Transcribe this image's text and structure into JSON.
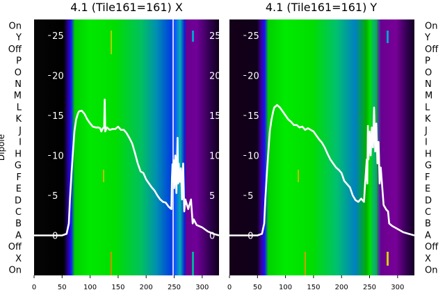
{
  "chart_data": [
    {
      "type": "heatmap",
      "title": "4.1 (Tile161=161) X",
      "ylabel": "Dipole",
      "xlim": [
        0,
        330
      ],
      "xticks": [
        0,
        50,
        100,
        150,
        200,
        250,
        300
      ],
      "dipole_labels": [
        "On",
        "Y",
        "Off",
        "P",
        "O",
        "N",
        "M",
        "L",
        "K",
        "J",
        "I",
        "H",
        "G",
        "F",
        "E",
        "D",
        "C",
        "B",
        "A",
        "Off",
        "X",
        "On"
      ],
      "overlay_ylim": [
        -5,
        27
      ],
      "overlay_yticks": [
        0,
        5,
        10,
        15,
        20,
        25
      ],
      "line_x": [
        0,
        25,
        50,
        58,
        62,
        64,
        67,
        70,
        72,
        75,
        78,
        80,
        85,
        90,
        95,
        100,
        105,
        110,
        115,
        118,
        120,
        123,
        125,
        126,
        127,
        128,
        130,
        135,
        140,
        145,
        150,
        155,
        160,
        165,
        170,
        175,
        180,
        185,
        190,
        195,
        200,
        205,
        210,
        215,
        220,
        225,
        230,
        235,
        240,
        245,
        246,
        247,
        248,
        249,
        250,
        252,
        254,
        256,
        257,
        258,
        260,
        262,
        264,
        266,
        268,
        270,
        275,
        280,
        283,
        285,
        290,
        300,
        310,
        320,
        330
      ],
      "line_y": [
        0,
        0,
        0,
        0.2,
        1.5,
        4.5,
        8,
        11,
        13,
        14.5,
        15.2,
        15.5,
        15.6,
        15.2,
        14.5,
        14,
        13.6,
        13.5,
        13.5,
        13.4,
        13,
        13.4,
        13.5,
        17,
        13,
        13.2,
        13.5,
        13.2,
        13.3,
        13.3,
        13.6,
        13.2,
        13.2,
        12.8,
        12.2,
        11.5,
        10.3,
        9,
        8,
        7.8,
        7,
        6.5,
        6,
        5.6,
        5,
        4.5,
        4.2,
        4.1,
        3.6,
        3.3,
        7.2,
        8.9,
        6.7,
        9.4,
        5.9,
        10,
        5.3,
        12.2,
        6.5,
        9,
        6.7,
        8.4,
        4.5,
        9,
        3,
        4.5,
        3.3,
        4.5,
        1.5,
        2,
        1.3,
        1,
        0.5,
        0.2,
        0
      ]
    },
    {
      "type": "heatmap",
      "title": "4.1 (Tile161=161) Y",
      "xlim": [
        0,
        330
      ],
      "xticks": [
        0,
        50,
        100,
        150,
        200,
        250,
        300
      ],
      "dipole_labels": [
        "On",
        "Y",
        "Off",
        "P",
        "O",
        "N",
        "M",
        "L",
        "K",
        "J",
        "I",
        "H",
        "G",
        "F",
        "E",
        "D",
        "C",
        "B",
        "A",
        "Off",
        "X",
        "On"
      ],
      "overlay_ylim": [
        -5,
        27
      ],
      "overlay_yticks": [
        0,
        5,
        10,
        15,
        20,
        25
      ],
      "line_x": [
        0,
        25,
        50,
        58,
        62,
        64,
        67,
        70,
        72,
        75,
        78,
        80,
        85,
        90,
        95,
        100,
        105,
        110,
        115,
        120,
        125,
        130,
        135,
        140,
        145,
        150,
        155,
        160,
        165,
        170,
        175,
        180,
        185,
        190,
        195,
        200,
        205,
        210,
        215,
        220,
        225,
        230,
        235,
        240,
        242,
        245,
        246,
        247,
        248,
        250,
        252,
        254,
        256,
        258,
        260,
        262,
        264,
        266,
        268,
        270,
        275,
        280,
        283,
        285,
        290,
        300,
        310,
        320,
        330
      ],
      "line_y": [
        0,
        0,
        0,
        0.2,
        1.5,
        4.5,
        8,
        11,
        13,
        14.5,
        15.5,
        16,
        16.3,
        16,
        15.5,
        15,
        14.5,
        14.2,
        13.8,
        13.8,
        13.5,
        13.6,
        13.2,
        13.4,
        13.2,
        13,
        12.5,
        12,
        11.6,
        11,
        10.2,
        9.5,
        9,
        8.5,
        8.2,
        7.8,
        6.8,
        6.4,
        6,
        5,
        4.4,
        4.2,
        4.6,
        4.2,
        6.5,
        9.5,
        6.5,
        13.7,
        9.5,
        13,
        10,
        13.5,
        11,
        16,
        10.5,
        14,
        9,
        11.7,
        6.5,
        8.5,
        3.8,
        3.2,
        3,
        1.5,
        1.2,
        0.8,
        0.4,
        0.2,
        0
      ]
    }
  ]
}
